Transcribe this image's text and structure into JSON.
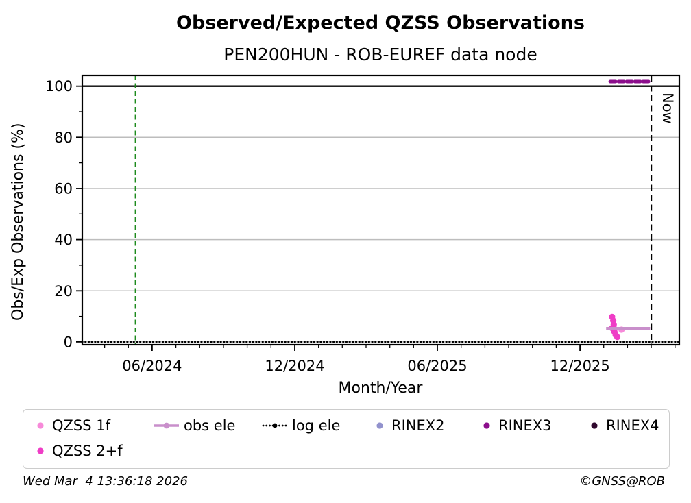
{
  "chart_data": {
    "type": "line",
    "title": "Observed/Expected QZSS Observations",
    "subtitle": "PEN200HUN - ROB-EUREF data node",
    "xlabel": "Month/Year",
    "ylabel": "Obs/Exp Observations (%)",
    "x_encoding": "months since 2024-01 (0 = Jan 2024)",
    "xlim": [
      2.06,
      27.18
    ],
    "ylim": [
      -1.1,
      104.2
    ],
    "xticks": [
      {
        "x": 5,
        "label": "06/2024"
      },
      {
        "x": 11,
        "label": "12/2024"
      },
      {
        "x": 17,
        "label": "06/2025"
      },
      {
        "x": 23,
        "label": "12/2025"
      }
    ],
    "yticks": [
      {
        "y": 0,
        "label": "0"
      },
      {
        "y": 20,
        "label": "20"
      },
      {
        "y": 40,
        "label": "40"
      },
      {
        "y": 60,
        "label": "60"
      },
      {
        "y": 80,
        "label": "80"
      },
      {
        "y": 100,
        "label": "100"
      }
    ],
    "minor_x_step": 1,
    "minor_y_step": 10,
    "grid": true,
    "grid_color": "#bdbdbd",
    "series": [
      {
        "id": "log_ele",
        "name": "log ele",
        "type": "line",
        "color": "#000000",
        "line_style": "dotted",
        "line_width": 3,
        "points": [
          [
            2.06,
            0
          ],
          [
            27.18,
            0
          ]
        ]
      },
      {
        "id": "qzss_1f",
        "name": "QZSS 1f",
        "type": "scatter",
        "color": "#F78AD9",
        "points": [
          [
            24.45,
            5.2
          ],
          [
            24.75,
            4.8
          ]
        ]
      },
      {
        "id": "qzss_2f",
        "name": "QZSS 2+f",
        "type": "scatter",
        "color": "#EF3DC6",
        "points": [
          [
            24.35,
            9.8
          ],
          [
            24.4,
            8.3
          ],
          [
            24.42,
            6.8
          ],
          [
            24.35,
            5.4
          ],
          [
            24.45,
            4.0
          ],
          [
            24.5,
            2.7
          ],
          [
            24.57,
            1.9
          ]
        ]
      },
      {
        "id": "obs_ele",
        "name": "obs ele",
        "type": "line",
        "color": "#C98FCB",
        "line_width": 5,
        "points": [
          [
            24.1,
            5.2
          ],
          [
            25.95,
            5.2
          ]
        ]
      },
      {
        "id": "rinex2",
        "name": "RINEX2",
        "type": "scatter",
        "color": "#9292CD",
        "points": []
      },
      {
        "id": "rinex3",
        "name": "RINEX3",
        "type": "line",
        "color": "#8C0E8C",
        "line_style": "dashed",
        "line_width": 5,
        "points": [
          [
            24.27,
            101.8
          ],
          [
            25.95,
            101.8
          ]
        ]
      },
      {
        "id": "rinex4",
        "name": "RINEX4",
        "type": "scatter",
        "color": "#30082E",
        "points": []
      }
    ],
    "annotations": {
      "start_line": {
        "x": 4.3,
        "color": "#1E8B1E",
        "style": "dashed"
      },
      "now_line": {
        "x": 26.0,
        "color": "#000000",
        "style": "dashed",
        "label": "Now"
      },
      "reference_line_100": {
        "y": 100,
        "color": "#000000"
      }
    },
    "legend_position": "bottom"
  },
  "legend": {
    "columns": [
      {
        "items": [
          {
            "series": "qzss_1f",
            "label": "QZSS 1f",
            "sample": "dot"
          },
          {
            "series": "qzss_2f",
            "label": "QZSS 2+f",
            "sample": "dot"
          }
        ]
      },
      {
        "items": [
          {
            "series": "obs_ele",
            "label": "obs ele",
            "sample": "line-dot"
          }
        ]
      },
      {
        "items": [
          {
            "series": "log_ele",
            "label": "log ele",
            "sample": "dotted-line-dot"
          }
        ]
      },
      {
        "items": [
          {
            "series": "rinex2",
            "label": "RINEX2",
            "sample": "dot"
          }
        ]
      },
      {
        "items": [
          {
            "series": "rinex3",
            "label": "RINEX3",
            "sample": "dot"
          }
        ]
      },
      {
        "items": [
          {
            "series": "rinex4",
            "label": "RINEX4",
            "sample": "dot"
          }
        ]
      }
    ]
  },
  "footer": {
    "timestamp": "Wed Mar  4 13:36:18 2026",
    "credit": "©GNSS@ROB"
  }
}
